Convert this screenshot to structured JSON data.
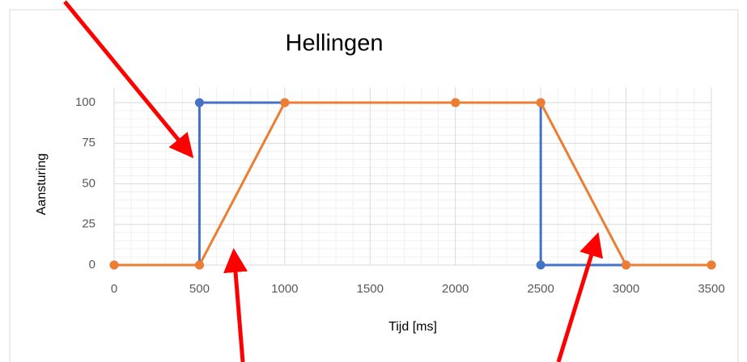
{
  "chart_data": {
    "type": "line",
    "title": "Hellingen",
    "xlabel": "Tijd [ms]",
    "ylabel": "Aansturing",
    "series": [
      {
        "color": "#4472c4",
        "x": [
          0,
          500,
          500,
          1000,
          2000,
          2500,
          2500,
          3000,
          3500
        ],
        "values": [
          0,
          0,
          100,
          100,
          100,
          100,
          0,
          0,
          0
        ]
      },
      {
        "color": "#ed7d31",
        "x": [
          0,
          500,
          1000,
          2000,
          2500,
          3000,
          3500
        ],
        "values": [
          0,
          0,
          100,
          100,
          100,
          0,
          0
        ]
      }
    ],
    "xlim": [
      0,
      3500
    ],
    "xticks": [
      0,
      500,
      1000,
      1500,
      2000,
      2500,
      3000,
      3500
    ],
    "ylim": [
      0,
      100
    ],
    "yticks": [
      0,
      25,
      50,
      75,
      100
    ],
    "grid": true
  }
}
